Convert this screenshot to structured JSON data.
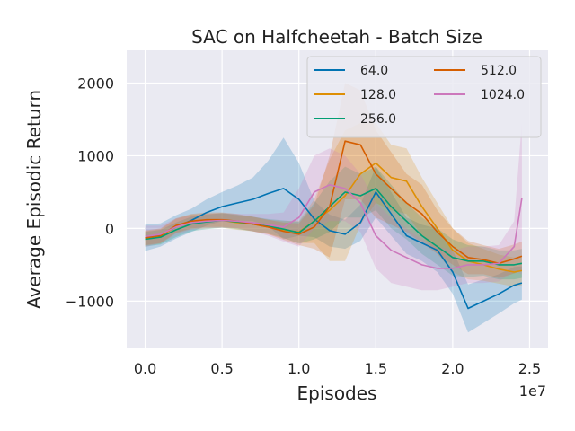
{
  "chart_data": {
    "type": "line",
    "title": "SAC on Halfcheetah - Batch Size",
    "xlabel": "Episodes",
    "ylabel": "Average Episodic Return",
    "x_offset_label": "1e7",
    "xlim": [
      -0.12,
      2.62
    ],
    "ylim": [
      -1650,
      2450
    ],
    "x_ticks": [
      0.0,
      0.5,
      1.0,
      1.5,
      2.0,
      2.5
    ],
    "x_tick_labels": [
      "0.0",
      "0.5",
      "1.0",
      "1.5",
      "2.0",
      "2.5"
    ],
    "y_ticks": [
      -1000,
      0,
      1000,
      2000
    ],
    "y_tick_labels": [
      "−1000",
      "0",
      "1000",
      "2000"
    ],
    "grid": true,
    "legend_position": "top-right",
    "x": [
      0.0,
      0.1,
      0.2,
      0.3,
      0.4,
      0.5,
      0.6,
      0.7,
      0.8,
      0.9,
      1.0,
      1.1,
      1.2,
      1.3,
      1.4,
      1.5,
      1.6,
      1.7,
      1.8,
      1.9,
      2.0,
      2.1,
      2.2,
      2.3,
      2.4,
      2.45
    ],
    "series": [
      {
        "name": "64.0",
        "color": "#0173b2",
        "values": [
          -130,
          -90,
          20,
          110,
          220,
          300,
          350,
          400,
          480,
          550,
          400,
          130,
          -30,
          -80,
          80,
          500,
          200,
          -100,
          -200,
          -300,
          -600,
          -1100,
          -1000,
          -900,
          -780,
          -750
        ],
        "band": [
          180,
          160,
          160,
          160,
          180,
          200,
          240,
          300,
          450,
          700,
          500,
          250,
          220,
          200,
          250,
          350,
          300,
          250,
          250,
          300,
          300,
          330,
          300,
          270,
          250,
          230
        ]
      },
      {
        "name": "128.0",
        "color": "#de8f05",
        "values": [
          -140,
          -110,
          30,
          90,
          100,
          110,
          80,
          60,
          20,
          -20,
          -50,
          100,
          250,
          450,
          750,
          900,
          700,
          650,
          300,
          0,
          -300,
          -450,
          -500,
          -560,
          -600,
          -580
        ],
        "band": [
          100,
          100,
          100,
          100,
          100,
          100,
          100,
          100,
          100,
          120,
          150,
          300,
          700,
          900,
          700,
          550,
          450,
          450,
          400,
          350,
          300,
          250,
          220,
          200,
          200,
          200
        ]
      },
      {
        "name": "256.0",
        "color": "#029e73",
        "values": [
          -150,
          -120,
          -20,
          60,
          90,
          110,
          90,
          60,
          30,
          -10,
          -60,
          100,
          300,
          500,
          450,
          550,
          300,
          100,
          -100,
          -250,
          -400,
          -450,
          -450,
          -500,
          -500,
          -480
        ],
        "band": [
          100,
          100,
          100,
          100,
          100,
          100,
          100,
          100,
          100,
          120,
          150,
          250,
          350,
          350,
          300,
          300,
          300,
          250,
          250,
          250,
          250,
          220,
          200,
          200,
          200,
          200
        ]
      },
      {
        "name": "512.0",
        "color": "#d55e00",
        "values": [
          -130,
          -100,
          40,
          100,
          120,
          120,
          100,
          60,
          20,
          -40,
          -80,
          20,
          300,
          1200,
          1150,
          750,
          550,
          350,
          200,
          -50,
          -250,
          -400,
          -430,
          -480,
          -420,
          -380
        ],
        "band": [
          100,
          100,
          100,
          100,
          100,
          100,
          100,
          100,
          100,
          120,
          150,
          300,
          700,
          800,
          750,
          600,
          500,
          400,
          400,
          300,
          250,
          230,
          200,
          200,
          200,
          200
        ]
      },
      {
        "name": "1024.0",
        "color": "#cc78bc",
        "values": [
          -110,
          -80,
          20,
          80,
          100,
          110,
          100,
          80,
          50,
          20,
          150,
          500,
          600,
          550,
          350,
          -100,
          -300,
          -400,
          -500,
          -550,
          -550,
          -500,
          -500,
          -480,
          -250,
          420
        ],
        "band": [
          150,
          120,
          120,
          100,
          100,
          100,
          100,
          120,
          150,
          200,
          400,
          500,
          500,
          450,
          400,
          450,
          450,
          400,
          350,
          300,
          250,
          250,
          250,
          250,
          350,
          1050
        ]
      }
    ]
  }
}
